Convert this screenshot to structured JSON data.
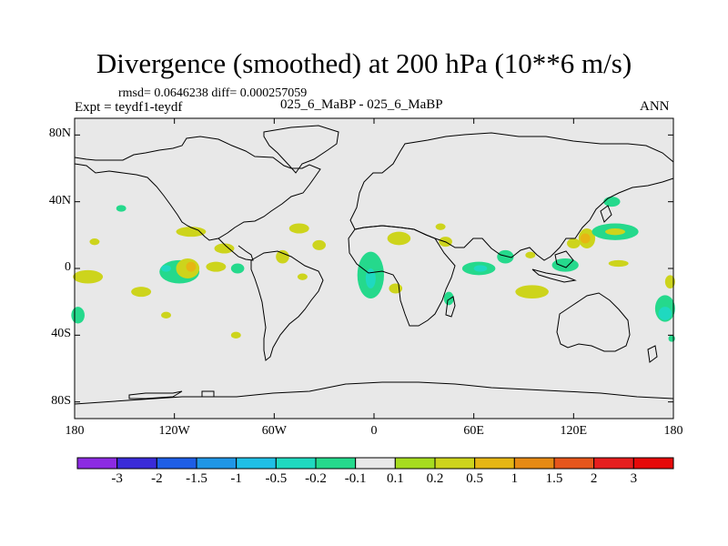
{
  "chart_data": {
    "type": "heatmap",
    "title": "Divergence (smoothed) at 200 hPa (10**6 m/s)",
    "stats": "rmsd= 0.0646238 diff= 0.000257059",
    "experiment": "Expt = teydf1-teydf",
    "case": "025_6_MaBP - 025_6_MaBP",
    "period": "ANN",
    "x_ticks": [
      {
        "value": -180,
        "label": "180"
      },
      {
        "value": -120,
        "label": "120W"
      },
      {
        "value": -60,
        "label": "60W"
      },
      {
        "value": 0,
        "label": "0"
      },
      {
        "value": 60,
        "label": "60E"
      },
      {
        "value": 120,
        "label": "120E"
      },
      {
        "value": 180,
        "label": "180"
      }
    ],
    "y_ticks": [
      {
        "value": 80,
        "label": "80N"
      },
      {
        "value": 40,
        "label": "40N"
      },
      {
        "value": 0,
        "label": "0"
      },
      {
        "value": -40,
        "label": "40S"
      },
      {
        "value": -80,
        "label": "80S"
      }
    ],
    "xlim": [
      -180,
      180
    ],
    "ylim": [
      -90,
      90
    ],
    "background_color": "#e8e8e8",
    "colorbar": {
      "levels": [
        "-3",
        "-2",
        "-1.5",
        "-1",
        "-0.5",
        "-0.2",
        "-0.1",
        "0.1",
        "0.2",
        "0.5",
        "1",
        "1.5",
        "2",
        "3"
      ],
      "colors": [
        "#8c2be2",
        "#3a2bd8",
        "#1e5ee6",
        "#1f96e6",
        "#1fbfe6",
        "#1fd9c0",
        "#25d98c",
        "#e8e8e8",
        "#a6dc1f",
        "#cdd41c",
        "#e6b614",
        "#e68a14",
        "#e6561c",
        "#e61e1e",
        "#e60a0a"
      ]
    },
    "anomalies": [
      {
        "lon": -172,
        "lat": -5,
        "rx": 9,
        "ry": 4,
        "level": "0.2"
      },
      {
        "lon": -178,
        "lat": -28,
        "rx": 4,
        "ry": 5,
        "level": "-0.1"
      },
      {
        "lon": -140,
        "lat": -14,
        "rx": 6,
        "ry": 3,
        "level": "0.2"
      },
      {
        "lon": -117,
        "lat": -2,
        "rx": 12,
        "ry": 7,
        "level": "-0.1"
      },
      {
        "lon": -112,
        "lat": 0,
        "rx": 7,
        "ry": 6,
        "level": "0.2"
      },
      {
        "lon": -110,
        "lat": 1,
        "rx": 3,
        "ry": 3,
        "level": "0.5"
      },
      {
        "lon": -125,
        "lat": 0,
        "rx": 3,
        "ry": 2,
        "level": "-0.2"
      },
      {
        "lon": -110,
        "lat": 22,
        "rx": 9,
        "ry": 3,
        "level": "0.2"
      },
      {
        "lon": -90,
        "lat": 12,
        "rx": 6,
        "ry": 3,
        "level": "0.2"
      },
      {
        "lon": -95,
        "lat": 1,
        "rx": 6,
        "ry": 3,
        "level": "0.2"
      },
      {
        "lon": -82,
        "lat": 0,
        "rx": 4,
        "ry": 3,
        "level": "-0.1"
      },
      {
        "lon": -55,
        "lat": 7,
        "rx": 4,
        "ry": 4,
        "level": "0.2"
      },
      {
        "lon": -45,
        "lat": 24,
        "rx": 6,
        "ry": 3,
        "level": "0.2"
      },
      {
        "lon": -33,
        "lat": 14,
        "rx": 4,
        "ry": 3,
        "level": "0.2"
      },
      {
        "lon": -43,
        "lat": -5,
        "rx": 3,
        "ry": 2,
        "level": "0.2"
      },
      {
        "lon": -125,
        "lat": -28,
        "rx": 3,
        "ry": 2,
        "level": "0.2"
      },
      {
        "lon": -83,
        "lat": -40,
        "rx": 3,
        "ry": 2,
        "level": "0.2"
      },
      {
        "lon": -152,
        "lat": 36,
        "rx": 3,
        "ry": 2,
        "level": "-0.1"
      },
      {
        "lon": -168,
        "lat": 16,
        "rx": 3,
        "ry": 2,
        "level": "0.2"
      },
      {
        "lon": -2,
        "lat": -4,
        "rx": 8,
        "ry": 14,
        "level": "-0.1"
      },
      {
        "lon": -2,
        "lat": -6,
        "rx": 3,
        "ry": 6,
        "level": "-0.2"
      },
      {
        "lon": 15,
        "lat": 18,
        "rx": 7,
        "ry": 4,
        "level": "0.2"
      },
      {
        "lon": 13,
        "lat": -12,
        "rx": 4,
        "ry": 3,
        "level": "0.2"
      },
      {
        "lon": 45,
        "lat": -18,
        "rx": 3,
        "ry": 4,
        "level": "-0.1"
      },
      {
        "lon": 43,
        "lat": 16,
        "rx": 4,
        "ry": 3,
        "level": "0.2"
      },
      {
        "lon": 40,
        "lat": 25,
        "rx": 3,
        "ry": 2,
        "level": "0.2"
      },
      {
        "lon": 63,
        "lat": 0,
        "rx": 10,
        "ry": 4,
        "level": "-0.1"
      },
      {
        "lon": 64,
        "lat": 0,
        "rx": 4,
        "ry": 2,
        "level": "-0.2"
      },
      {
        "lon": 79,
        "lat": 7,
        "rx": 5,
        "ry": 4,
        "level": "-0.1"
      },
      {
        "lon": 95,
        "lat": -14,
        "rx": 10,
        "ry": 4,
        "level": "0.2"
      },
      {
        "lon": 94,
        "lat": 8,
        "rx": 3,
        "ry": 2,
        "level": "0.2"
      },
      {
        "lon": 120,
        "lat": 15,
        "rx": 4,
        "ry": 3,
        "level": "0.2"
      },
      {
        "lon": 128,
        "lat": 18,
        "rx": 5,
        "ry": 6,
        "level": "0.2"
      },
      {
        "lon": 127,
        "lat": 18,
        "rx": 3,
        "ry": 3,
        "level": "0.5"
      },
      {
        "lon": 145,
        "lat": 22,
        "rx": 14,
        "ry": 5,
        "level": "-0.1"
      },
      {
        "lon": 145,
        "lat": 22,
        "rx": 6,
        "ry": 2,
        "level": "0.2"
      },
      {
        "lon": 143,
        "lat": 40,
        "rx": 5,
        "ry": 3,
        "level": "-0.1"
      },
      {
        "lon": 115,
        "lat": 2,
        "rx": 8,
        "ry": 4,
        "level": "-0.1"
      },
      {
        "lon": 147,
        "lat": 3,
        "rx": 6,
        "ry": 2,
        "level": "0.2"
      },
      {
        "lon": 175,
        "lat": -24,
        "rx": 6,
        "ry": 8,
        "level": "-0.1"
      },
      {
        "lon": 175,
        "lat": -27,
        "rx": 4,
        "ry": 4,
        "level": "-0.2"
      },
      {
        "lon": 178,
        "lat": -8,
        "rx": 3,
        "ry": 4,
        "level": "0.2"
      },
      {
        "lon": 179,
        "lat": -42,
        "rx": 2,
        "ry": 2,
        "level": "-0.1"
      }
    ]
  }
}
